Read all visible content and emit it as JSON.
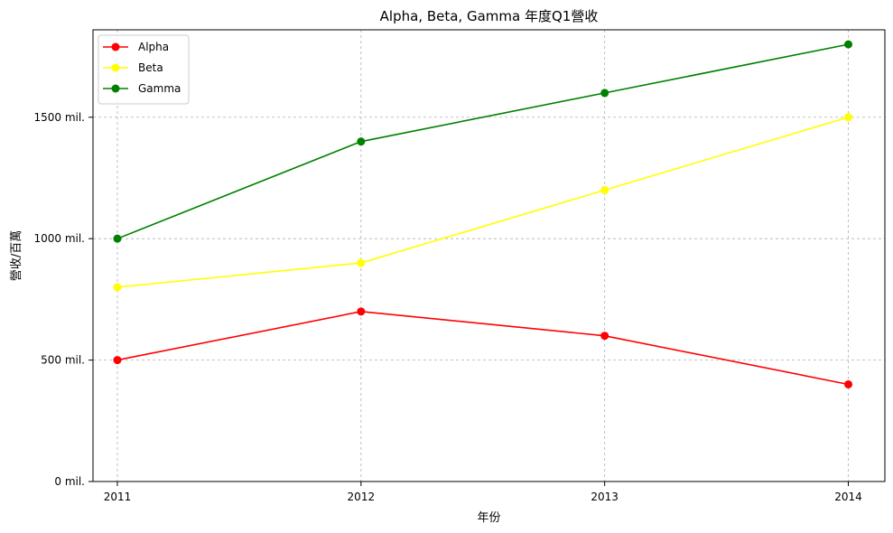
{
  "chart_data": {
    "type": "line",
    "title": "Alpha, Beta, Gamma 年度Q1營收",
    "xlabel": "年份",
    "ylabel": "營收/百萬",
    "x": [
      2011,
      2012,
      2013,
      2014
    ],
    "x_tick_labels": [
      "2011",
      "2012",
      "2013",
      "2014"
    ],
    "y_ticks": [
      0,
      500,
      1000,
      1500
    ],
    "y_tick_labels": [
      "0 mil.",
      "500 mil.",
      "1000 mil.",
      "1500 mil."
    ],
    "ylim": [
      0,
      1860
    ],
    "xlim": [
      2010.9,
      2014.15
    ],
    "grid": true,
    "legend_position": "top-left",
    "series": [
      {
        "name": "Alpha",
        "color": "#ff0000",
        "values": [
          500,
          700,
          600,
          400
        ]
      },
      {
        "name": "Beta",
        "color": "#ffff00",
        "values": [
          800,
          900,
          1200,
          1500
        ]
      },
      {
        "name": "Gamma",
        "color": "#008000",
        "values": [
          1000,
          1400,
          1600,
          1800
        ]
      }
    ]
  }
}
